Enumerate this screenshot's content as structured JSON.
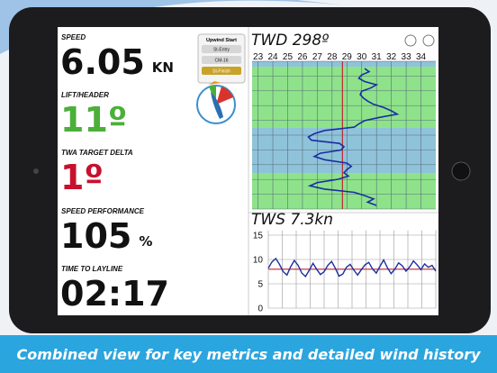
{
  "caption": "Combined view for key metrics and detailed wind history",
  "metrics": [
    {
      "label": "SPEED",
      "value": "6.05",
      "unit": "KN",
      "color": "#111111"
    },
    {
      "label": "LIFT/HEADER",
      "value": "11º",
      "color": "#4caf3a"
    },
    {
      "label": "TWA TARGET DELTA",
      "value": "1º",
      "color": "#c8102e"
    },
    {
      "label": "SPEED PERFORMANCE",
      "value": "105",
      "unit": "%",
      "color": "#111111"
    },
    {
      "label": "TIME TO LAYLINE",
      "value": "02:17",
      "color": "#111111"
    }
  ],
  "start_menu": {
    "title": "Upwind Start",
    "items": [
      "St-Entry",
      "CM-16",
      "St-Finish"
    ],
    "active_color": "#c9a227"
  },
  "twd_chart": {
    "type": "line",
    "title": "TWD 298º",
    "color": "#1a2fa0",
    "reference": 28.7,
    "reference_color": "#c0262d",
    "xlim": [
      22.6,
      35
    ],
    "xticks": [
      23,
      24,
      25,
      26,
      27,
      28,
      29,
      30,
      31,
      32,
      33,
      34
    ],
    "grid": true,
    "values": [
      30.2,
      30.5,
      30.0,
      29.8,
      30.2,
      31.0,
      30.6,
      30.0,
      29.9,
      30.1,
      30.4,
      30.8,
      31.5,
      32.0,
      32.4,
      31.2,
      30.2,
      29.8,
      29.5,
      27.5,
      26.8,
      26.4,
      26.6,
      28.5,
      28.8,
      28.6,
      27.2,
      26.8,
      27.5,
      29.0,
      29.3,
      29.0,
      28.8,
      29.1,
      28.4,
      27.0,
      26.5,
      27.5,
      29.5,
      30.2,
      30.8,
      30.4,
      31.0
    ]
  },
  "tws_chart": {
    "type": "line",
    "title": "TWS 7.3kn",
    "color": "#1a2fa0",
    "reference": 8,
    "reference_color": "#c0262d",
    "ylim": [
      0,
      16
    ],
    "yticks": [
      0,
      5,
      10,
      15
    ],
    "grid": true,
    "values": [
      8.2,
      9.5,
      10.2,
      9.0,
      7.5,
      6.8,
      8.5,
      9.8,
      8.8,
      7.2,
      6.5,
      7.8,
      9.2,
      8.0,
      6.9,
      7.5,
      8.8,
      9.6,
      8.2,
      6.6,
      7.0,
      8.4,
      9.0,
      7.8,
      6.8,
      7.9,
      8.9,
      9.4,
      8.1,
      7.2,
      8.6,
      9.9,
      8.3,
      7.1,
      8.0,
      9.3,
      8.7,
      7.6,
      8.5,
      9.7,
      8.9,
      7.9,
      9.1,
      8.4,
      8.8,
      7.6
    ]
  }
}
